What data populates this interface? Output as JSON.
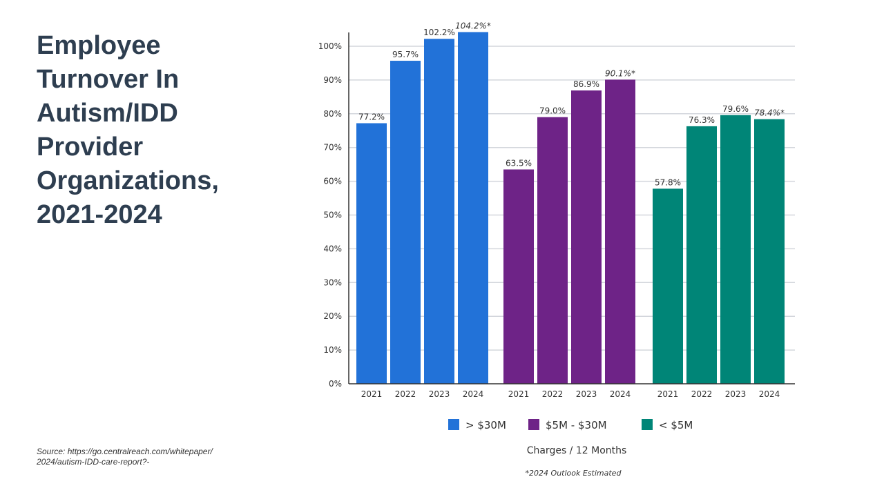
{
  "slide": {
    "title_lines": [
      "Employee",
      "Turnover In",
      "Autism/IDD",
      "Provider",
      "Organizations,",
      "2021-2024"
    ],
    "source_lines": [
      "Source: https://go.centralreach.com/whitepaper/",
      "2024/autism-IDD-care-report?-"
    ]
  },
  "chart_data": {
    "type": "bar",
    "title": "Employee Turnover In Autism/IDD Provider Organizations, 2021-2024",
    "xlabel": "Charges / 12 Months",
    "ylabel": "",
    "ylim": [
      0,
      100
    ],
    "yticks": [
      0,
      10,
      20,
      30,
      40,
      50,
      60,
      70,
      80,
      90,
      100
    ],
    "ytick_labels": [
      "0%",
      "10%",
      "20%",
      "30%",
      "40%",
      "50%",
      "60%",
      "70%",
      "80%",
      "90%",
      "100%"
    ],
    "grid": true,
    "categories": [
      "2021",
      "2022",
      "2023",
      "2024"
    ],
    "legend_position": "bottom",
    "footnote": "*2024 Outlook Estimated",
    "series": [
      {
        "name": "> $30M",
        "color": "#2272d8",
        "values": [
          77.2,
          95.7,
          102.2,
          104.2
        ],
        "labels": [
          "77.2%",
          "95.7%",
          "102.2%",
          "104.2%*"
        ],
        "estimated": [
          false,
          false,
          false,
          true
        ]
      },
      {
        "name": "$5M - $30M",
        "color": "#6e2387",
        "values": [
          63.5,
          79.0,
          86.9,
          90.1
        ],
        "labels": [
          "63.5%",
          "79.0%",
          "86.9%",
          "90.1%*"
        ],
        "estimated": [
          false,
          false,
          false,
          true
        ]
      },
      {
        "name": "< $5M",
        "color": "#008577",
        "values": [
          57.8,
          76.3,
          79.6,
          78.4
        ],
        "labels": [
          "57.8%",
          "76.3%",
          "79.6%",
          "78.4%*"
        ],
        "estimated": [
          false,
          false,
          false,
          true
        ]
      }
    ]
  }
}
